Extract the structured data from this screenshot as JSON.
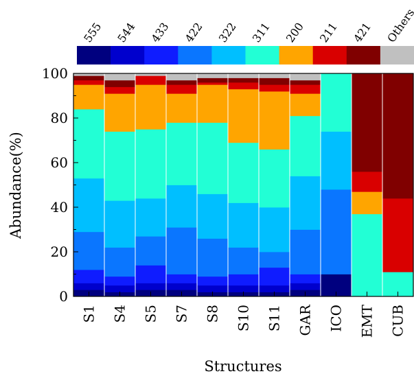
{
  "chart_data": {
    "type": "bar",
    "stacked": true,
    "xlabel": "Structures",
    "ylabel": "Abundance(%)",
    "ylim": [
      0,
      100
    ],
    "yticks": [
      0,
      20,
      40,
      60,
      80,
      100
    ],
    "grid": false,
    "legend_position": "top",
    "categories": [
      "S1",
      "S4",
      "S5",
      "S7",
      "S8",
      "S10",
      "S11",
      "GAR",
      "ICO",
      "EMT",
      "CUB"
    ],
    "series": [
      {
        "name": "555",
        "color": "#00007f",
        "values": [
          3,
          2,
          3,
          3,
          2,
          2,
          2,
          3,
          10,
          0,
          0
        ]
      },
      {
        "name": "544",
        "color": "#0000cd",
        "values": [
          3,
          3,
          3,
          3,
          3,
          3,
          3,
          3,
          0,
          0,
          0
        ]
      },
      {
        "name": "433",
        "color": "#0f1cff",
        "values": [
          6,
          4,
          8,
          4,
          4,
          5,
          8,
          4,
          0,
          0,
          0
        ]
      },
      {
        "name": "422",
        "color": "#0a76ff",
        "values": [
          17,
          13,
          13,
          21,
          17,
          12,
          7,
          20,
          38,
          0,
          0
        ]
      },
      {
        "name": "322",
        "color": "#00bfff",
        "values": [
          24,
          21,
          17,
          19,
          20,
          20,
          20,
          24,
          26,
          0,
          0
        ]
      },
      {
        "name": "311",
        "color": "#22ffd5",
        "values": [
          31,
          31,
          31,
          28,
          32,
          27,
          26,
          27,
          26,
          37,
          11
        ]
      },
      {
        "name": "200",
        "color": "#ffa500",
        "values": [
          11,
          17,
          20,
          13,
          17,
          24,
          26,
          10,
          0,
          10,
          0
        ]
      },
      {
        "name": "211",
        "color": "#d90000",
        "values": [
          2,
          3,
          4,
          4,
          1,
          3,
          3,
          4,
          0,
          9,
          33
        ]
      },
      {
        "name": "421",
        "color": "#800000",
        "values": [
          2,
          3,
          0,
          2,
          2,
          2,
          3,
          2,
          0,
          44,
          56
        ]
      },
      {
        "name": "Others",
        "color": "#c0c0c0",
        "values": [
          1,
          3,
          1,
          3,
          2,
          2,
          2,
          3,
          0,
          0,
          0
        ]
      }
    ]
  }
}
